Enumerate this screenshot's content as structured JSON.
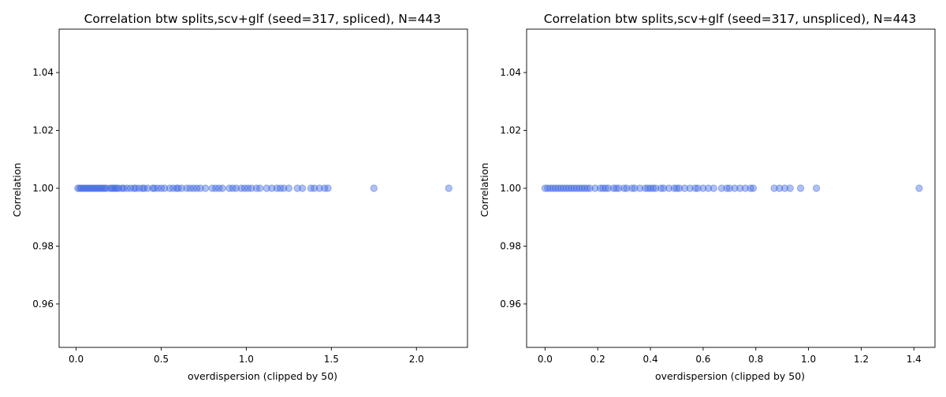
{
  "chart_data": [
    {
      "type": "scatter",
      "title": "Correlation btw splits,scv+glf (seed=317, spliced), N=443",
      "xlabel": "overdispersion (clipped by 50)",
      "ylabel": "Correlation",
      "xlim": [
        -0.1,
        2.3
      ],
      "ylim": [
        0.945,
        1.055
      ],
      "xticks": [
        0.0,
        0.5,
        1.0,
        1.5,
        2.0
      ],
      "xtick_labels": [
        "0.0",
        "0.5",
        "1.0",
        "1.5",
        "2.0"
      ],
      "yticks": [
        0.96,
        0.98,
        1.0,
        1.02,
        1.04
      ],
      "ytick_labels": [
        "0.96",
        "0.98",
        "1.00",
        "1.02",
        "1.04"
      ],
      "grid": false,
      "color": "#4169e1",
      "series": [
        {
          "x": [
            0.01,
            0.02,
            0.03,
            0.04,
            0.05,
            0.06,
            0.07,
            0.08,
            0.09,
            0.1,
            0.11,
            0.12,
            0.13,
            0.14,
            0.15,
            0.16,
            0.17,
            0.18,
            0.2,
            0.21,
            0.22,
            0.23,
            0.24,
            0.25,
            0.27,
            0.28,
            0.3,
            0.32,
            0.34,
            0.35,
            0.37,
            0.39,
            0.4,
            0.42,
            0.45,
            0.46,
            0.48,
            0.5,
            0.52,
            0.55,
            0.57,
            0.59,
            0.6,
            0.62,
            0.65,
            0.67,
            0.69,
            0.71,
            0.73,
            0.76,
            0.8,
            0.82,
            0.84,
            0.86,
            0.9,
            0.92,
            0.94,
            0.97,
            0.99,
            1.01,
            1.03,
            1.06,
            1.08,
            1.12,
            1.15,
            1.18,
            1.2,
            1.22,
            1.25,
            1.3,
            1.33,
            1.38,
            1.4,
            1.43,
            1.46,
            1.48,
            1.75,
            2.19
          ],
          "y": [
            1,
            1,
            1,
            1,
            1,
            1,
            1,
            1,
            1,
            1,
            1,
            1,
            1,
            1,
            1,
            1,
            1,
            1,
            1,
            1,
            1,
            1,
            1,
            1,
            1,
            1,
            1,
            1,
            1,
            1,
            1,
            1,
            1,
            1,
            1,
            1,
            1,
            1,
            1,
            1,
            1,
            1,
            1,
            1,
            1,
            1,
            1,
            1,
            1,
            1,
            1,
            1,
            1,
            1,
            1,
            1,
            1,
            1,
            1,
            1,
            1,
            1,
            1,
            1,
            1,
            1,
            1,
            1,
            1,
            1,
            1,
            1,
            1,
            1,
            1,
            1,
            1,
            1
          ]
        }
      ]
    },
    {
      "type": "scatter",
      "title": "Correlation btw splits,scv+glf (seed=317, unspliced), N=443",
      "xlabel": "overdispersion (clipped by 50)",
      "ylabel": "Correlation",
      "xlim": [
        -0.07,
        1.48
      ],
      "ylim": [
        0.945,
        1.055
      ],
      "xticks": [
        0.0,
        0.2,
        0.4,
        0.6,
        0.8,
        1.0,
        1.2,
        1.4
      ],
      "xtick_labels": [
        "0.0",
        "0.2",
        "0.4",
        "0.6",
        "0.8",
        "1.0",
        "1.2",
        "1.4"
      ],
      "yticks": [
        0.96,
        0.98,
        1.0,
        1.02,
        1.04
      ],
      "ytick_labels": [
        "0.96",
        "0.98",
        "1.00",
        "1.02",
        "1.04"
      ],
      "grid": false,
      "color": "#4169e1",
      "series": [
        {
          "x": [
            0.0,
            0.01,
            0.02,
            0.03,
            0.04,
            0.05,
            0.06,
            0.07,
            0.08,
            0.09,
            0.1,
            0.11,
            0.12,
            0.13,
            0.14,
            0.15,
            0.16,
            0.17,
            0.19,
            0.21,
            0.22,
            0.23,
            0.24,
            0.26,
            0.27,
            0.28,
            0.3,
            0.31,
            0.33,
            0.34,
            0.36,
            0.38,
            0.39,
            0.4,
            0.41,
            0.42,
            0.44,
            0.45,
            0.47,
            0.49,
            0.5,
            0.51,
            0.53,
            0.55,
            0.57,
            0.58,
            0.6,
            0.62,
            0.64,
            0.67,
            0.69,
            0.7,
            0.72,
            0.74,
            0.76,
            0.78,
            0.79,
            0.87,
            0.89,
            0.91,
            0.93,
            0.97,
            1.03,
            1.42
          ],
          "y": [
            1,
            1,
            1,
            1,
            1,
            1,
            1,
            1,
            1,
            1,
            1,
            1,
            1,
            1,
            1,
            1,
            1,
            1,
            1,
            1,
            1,
            1,
            1,
            1,
            1,
            1,
            1,
            1,
            1,
            1,
            1,
            1,
            1,
            1,
            1,
            1,
            1,
            1,
            1,
            1,
            1,
            1,
            1,
            1,
            1,
            1,
            1,
            1,
            1,
            1,
            1,
            1,
            1,
            1,
            1,
            1,
            1,
            1,
            1,
            1,
            1,
            1,
            1,
            1
          ]
        }
      ]
    }
  ]
}
